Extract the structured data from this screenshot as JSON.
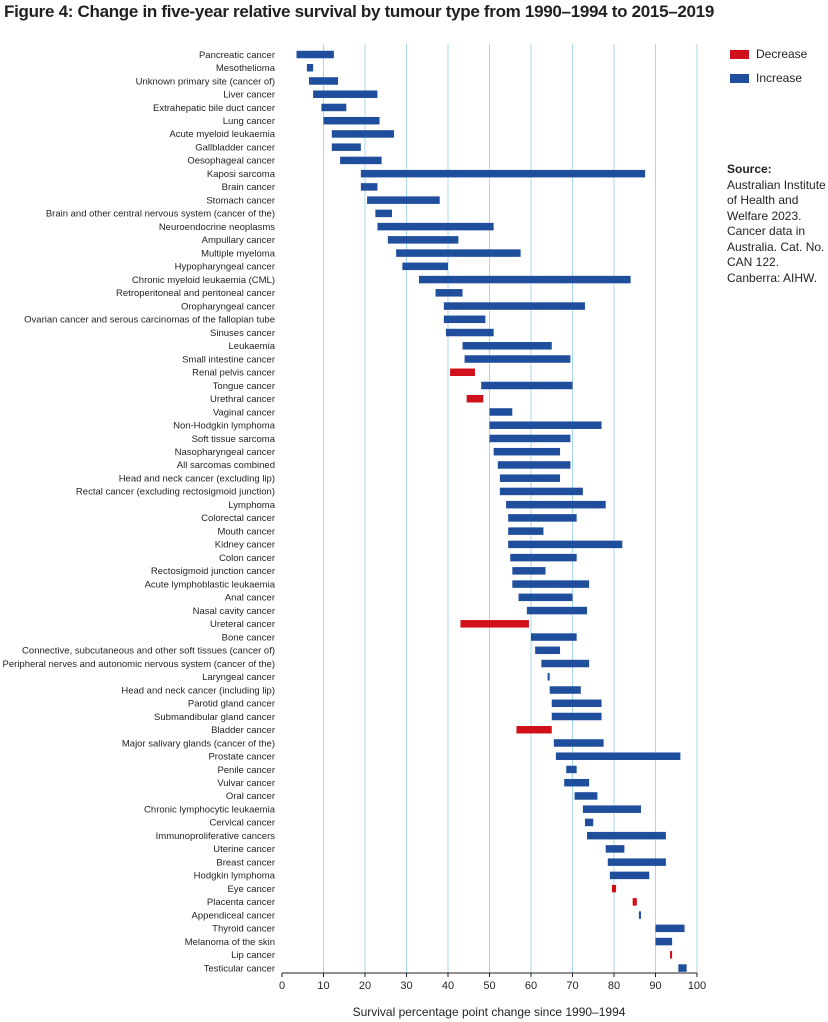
{
  "figure_title": "Figure 4: Change in five-year relative survival by tumour type from 1990–1994 to 2015–2019",
  "source": {
    "label": "Source:",
    "text": "Australian Institute of Health and Welfare 2023. Cancer data in Australia. Cat. No. CAN 122. Canberra: AIHW."
  },
  "colors": {
    "increase": "#1f4e9c",
    "decrease": "#d0111b",
    "grid": "#a9d8ee",
    "axis": "#231f20"
  },
  "chart_data": {
    "type": "bar",
    "orientation": "horizontal-floating",
    "title": "",
    "xlabel": "Survival percentage point change since 1990–1994",
    "ylabel": "",
    "xlim": [
      0,
      100
    ],
    "xticks": [
      0,
      10,
      20,
      30,
      40,
      50,
      60,
      70,
      80,
      90,
      100
    ],
    "grid": "vertical",
    "legend": {
      "placement": "top-right",
      "entries": [
        {
          "name": "Decrease",
          "color": "#d0111b"
        },
        {
          "name": "Increase",
          "color": "#1f4e9c"
        }
      ]
    },
    "series": [
      {
        "name": "Pancreatic cancer",
        "start": 3.5,
        "end": 12.5,
        "direction": "Increase"
      },
      {
        "name": "Mesothelioma",
        "start": 6.0,
        "end": 7.5,
        "direction": "Increase"
      },
      {
        "name": "Unknown primary site (cancer of)",
        "start": 6.5,
        "end": 13.5,
        "direction": "Increase"
      },
      {
        "name": "Liver cancer",
        "start": 7.5,
        "end": 23.0,
        "direction": "Increase"
      },
      {
        "name": "Extrahepatic bile duct cancer",
        "start": 9.5,
        "end": 15.5,
        "direction": "Increase"
      },
      {
        "name": "Lung cancer",
        "start": 10.0,
        "end": 23.5,
        "direction": "Increase"
      },
      {
        "name": "Acute myeloid leukaemia",
        "start": 12.0,
        "end": 27.0,
        "direction": "Increase"
      },
      {
        "name": "Gallbladder cancer",
        "start": 12.0,
        "end": 19.0,
        "direction": "Increase"
      },
      {
        "name": "Oesophageal cancer",
        "start": 14.0,
        "end": 24.0,
        "direction": "Increase"
      },
      {
        "name": "Kaposi sarcoma",
        "start": 19.0,
        "end": 87.5,
        "direction": "Increase"
      },
      {
        "name": "Brain cancer",
        "start": 19.0,
        "end": 23.0,
        "direction": "Increase"
      },
      {
        "name": "Stomach cancer",
        "start": 20.5,
        "end": 38.0,
        "direction": "Increase"
      },
      {
        "name": "Brain and other central nervous system (cancer of the)",
        "start": 22.5,
        "end": 26.5,
        "direction": "Increase"
      },
      {
        "name": "Neuroendocrine neoplasms",
        "start": 23.0,
        "end": 51.0,
        "direction": "Increase"
      },
      {
        "name": "Ampullary cancer",
        "start": 25.5,
        "end": 42.5,
        "direction": "Increase"
      },
      {
        "name": "Multiple myeloma",
        "start": 27.5,
        "end": 57.5,
        "direction": "Increase"
      },
      {
        "name": "Hypopharyngeal cancer",
        "start": 29.0,
        "end": 40.0,
        "direction": "Increase"
      },
      {
        "name": "Chronic myeloid leukaemia (CML)",
        "start": 33.0,
        "end": 84.0,
        "direction": "Increase"
      },
      {
        "name": "Retroperitoneal and peritoneal cancer",
        "start": 37.0,
        "end": 43.5,
        "direction": "Increase"
      },
      {
        "name": "Oropharyngeal cancer",
        "start": 39.0,
        "end": 73.0,
        "direction": "Increase"
      },
      {
        "name": "Ovarian cancer and serous carcinomas of the fallopian tube",
        "start": 39.0,
        "end": 49.0,
        "direction": "Increase"
      },
      {
        "name": "Sinuses cancer",
        "start": 39.5,
        "end": 51.0,
        "direction": "Increase"
      },
      {
        "name": "Leukaemia",
        "start": 43.5,
        "end": 65.0,
        "direction": "Increase"
      },
      {
        "name": "Small intestine cancer",
        "start": 44.0,
        "end": 69.5,
        "direction": "Increase"
      },
      {
        "name": "Renal pelvis cancer",
        "start": 40.5,
        "end": 46.5,
        "direction": "Decrease"
      },
      {
        "name": "Tongue cancer",
        "start": 48.0,
        "end": 70.0,
        "direction": "Increase"
      },
      {
        "name": "Urethral cancer",
        "start": 44.5,
        "end": 48.5,
        "direction": "Decrease"
      },
      {
        "name": "Vaginal cancer",
        "start": 50.0,
        "end": 55.5,
        "direction": "Increase"
      },
      {
        "name": "Non-Hodgkin lymphoma",
        "start": 50.0,
        "end": 77.0,
        "direction": "Increase"
      },
      {
        "name": "Soft tissue sarcoma",
        "start": 50.0,
        "end": 69.5,
        "direction": "Increase"
      },
      {
        "name": "Nasopharyngeal cancer",
        "start": 51.0,
        "end": 67.0,
        "direction": "Increase"
      },
      {
        "name": "All sarcomas combined",
        "start": 52.0,
        "end": 69.5,
        "direction": "Increase"
      },
      {
        "name": "Head and neck cancer (excluding lip)",
        "start": 52.5,
        "end": 67.0,
        "direction": "Increase"
      },
      {
        "name": "Rectal cancer (excluding rectosigmoid junction)",
        "start": 52.5,
        "end": 72.5,
        "direction": "Increase"
      },
      {
        "name": "Lymphoma",
        "start": 54.0,
        "end": 78.0,
        "direction": "Increase"
      },
      {
        "name": "Colorectal cancer",
        "start": 54.5,
        "end": 71.0,
        "direction": "Increase"
      },
      {
        "name": "Mouth cancer",
        "start": 54.5,
        "end": 63.0,
        "direction": "Increase"
      },
      {
        "name": "Kidney cancer",
        "start": 54.5,
        "end": 82.0,
        "direction": "Increase"
      },
      {
        "name": "Colon cancer",
        "start": 55.0,
        "end": 71.0,
        "direction": "Increase"
      },
      {
        "name": "Rectosigmoid junction cancer",
        "start": 55.5,
        "end": 63.5,
        "direction": "Increase"
      },
      {
        "name": "Acute lymphoblastic leukaemia",
        "start": 55.5,
        "end": 74.0,
        "direction": "Increase"
      },
      {
        "name": "Anal cancer",
        "start": 57.0,
        "end": 70.0,
        "direction": "Increase"
      },
      {
        "name": "Nasal cavity cancer",
        "start": 59.0,
        "end": 73.5,
        "direction": "Increase"
      },
      {
        "name": "Ureteral cancer",
        "start": 43.0,
        "end": 59.5,
        "direction": "Decrease"
      },
      {
        "name": "Bone cancer",
        "start": 60.0,
        "end": 71.0,
        "direction": "Increase"
      },
      {
        "name": "Connective, subcutaneous and other soft tissues (cancer of)",
        "start": 61.0,
        "end": 67.0,
        "direction": "Increase"
      },
      {
        "name": "Peripheral nerves and autonomic nervous system (cancer of the)",
        "start": 62.5,
        "end": 74.0,
        "direction": "Increase"
      },
      {
        "name": "Laryngeal cancer",
        "start": 64.0,
        "end": 64.5,
        "direction": "Increase"
      },
      {
        "name": "Head and neck cancer (including lip)",
        "start": 64.5,
        "end": 72.0,
        "direction": "Increase"
      },
      {
        "name": "Parotid gland cancer",
        "start": 65.0,
        "end": 77.0,
        "direction": "Increase"
      },
      {
        "name": "Submandibular gland cancer",
        "start": 65.0,
        "end": 77.0,
        "direction": "Increase"
      },
      {
        "name": "Bladder cancer",
        "start": 56.5,
        "end": 65.0,
        "direction": "Decrease"
      },
      {
        "name": "Major salivary glands (cancer of the)",
        "start": 65.5,
        "end": 77.5,
        "direction": "Increase"
      },
      {
        "name": "Prostate cancer",
        "start": 66.0,
        "end": 96.0,
        "direction": "Increase"
      },
      {
        "name": "Penile cancer",
        "start": 68.5,
        "end": 71.0,
        "direction": "Increase"
      },
      {
        "name": "Vulvar cancer",
        "start": 68.0,
        "end": 74.0,
        "direction": "Increase"
      },
      {
        "name": "Oral cancer",
        "start": 70.5,
        "end": 76.0,
        "direction": "Increase"
      },
      {
        "name": "Chronic lymphocytic leukaemia",
        "start": 72.5,
        "end": 86.5,
        "direction": "Increase"
      },
      {
        "name": "Cervical cancer",
        "start": 73.0,
        "end": 75.0,
        "direction": "Increase"
      },
      {
        "name": "Immunoproliferative cancers",
        "start": 73.5,
        "end": 92.5,
        "direction": "Increase"
      },
      {
        "name": "Uterine cancer",
        "start": 78.0,
        "end": 82.5,
        "direction": "Increase"
      },
      {
        "name": "Breast cancer",
        "start": 78.5,
        "end": 92.5,
        "direction": "Increase"
      },
      {
        "name": "Hodgkin lymphoma",
        "start": 79.0,
        "end": 88.5,
        "direction": "Increase"
      },
      {
        "name": "Eye cancer",
        "start": 79.5,
        "end": 80.5,
        "direction": "Decrease"
      },
      {
        "name": "Placenta cancer",
        "start": 84.5,
        "end": 85.5,
        "direction": "Decrease"
      },
      {
        "name": "Appendiceal cancer",
        "start": 86.0,
        "end": 86.5,
        "direction": "Increase"
      },
      {
        "name": "Thyroid cancer",
        "start": 90.0,
        "end": 97.0,
        "direction": "Increase"
      },
      {
        "name": "Melanoma of the skin",
        "start": 90.0,
        "end": 94.0,
        "direction": "Increase"
      },
      {
        "name": "Lip cancer",
        "start": 93.5,
        "end": 94.0,
        "direction": "Decrease"
      },
      {
        "name": "Testicular cancer",
        "start": 95.5,
        "end": 97.5,
        "direction": "Increase"
      }
    ]
  }
}
